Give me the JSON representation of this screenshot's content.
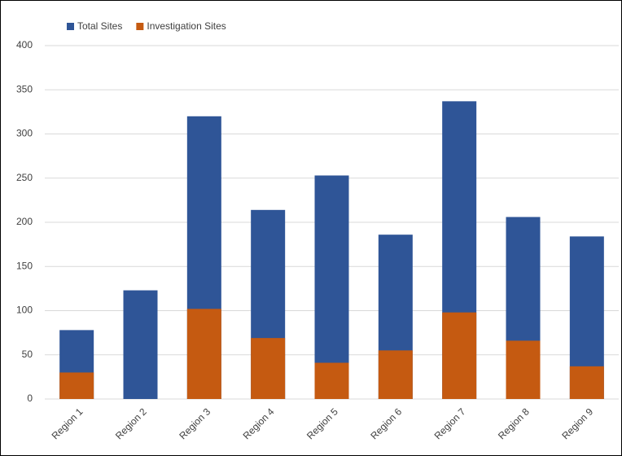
{
  "chart_data": {
    "type": "bar",
    "categories": [
      "Region 1",
      "Region 2",
      "Region 3",
      "Region 4",
      "Region 5",
      "Region 6",
      "Region 7",
      "Region 8",
      "Region 9"
    ],
    "series": [
      {
        "name": "Total Sites",
        "color": "#2f5597",
        "values": [
          78,
          123,
          320,
          214,
          253,
          186,
          337,
          206,
          184
        ]
      },
      {
        "name": "Investigation Sites",
        "color": "#c55a11",
        "values": [
          30,
          0,
          102,
          69,
          41,
          55,
          98,
          66,
          37
        ]
      }
    ],
    "ylim": [
      0,
      400
    ],
    "yticks": [
      0,
      50,
      100,
      150,
      200,
      250,
      300,
      350,
      400
    ],
    "grid": true,
    "legend": "top-left"
  }
}
